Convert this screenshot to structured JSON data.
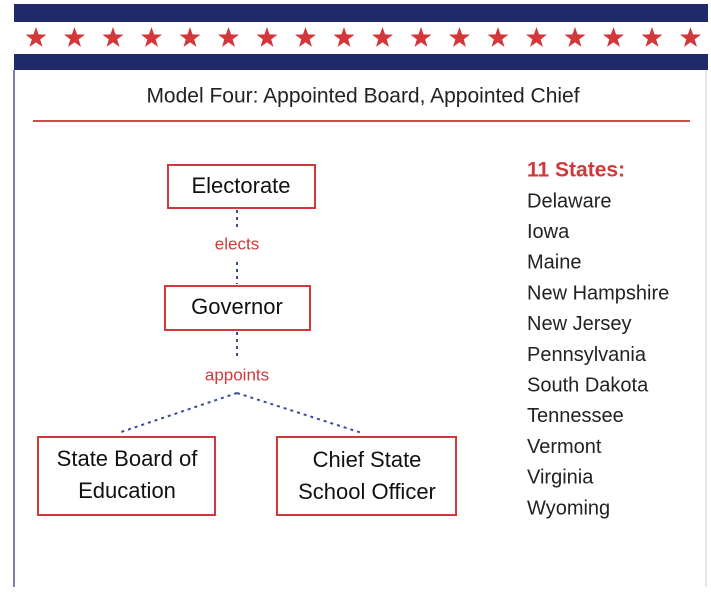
{
  "title": "Model Four: Appointed Board, Appointed Chief",
  "nodes": [
    {
      "lines": [
        "Electorate"
      ]
    },
    {
      "lines": [
        "Governor"
      ]
    },
    {
      "lines": [
        "State Board of",
        "Education"
      ]
    },
    {
      "lines": [
        "Chief State",
        "School Officer"
      ]
    }
  ],
  "edges": [
    {
      "label": "elects"
    },
    {
      "label": "appoints"
    }
  ],
  "states": {
    "heading": "11 States:",
    "list": [
      "Delaware",
      "Iowa",
      "Maine",
      "New Hampshire",
      "New Jersey",
      "Pennsylvania",
      "South Dakota",
      "Tennessee",
      "Vermont",
      "Virginia",
      "Wyoming"
    ]
  }
}
